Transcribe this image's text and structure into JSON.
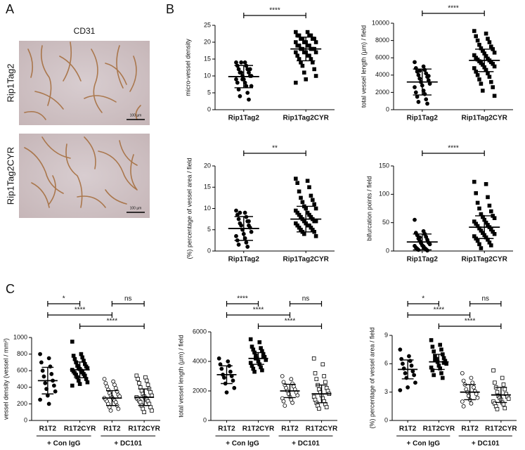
{
  "panels": {
    "a": "A",
    "b": "B",
    "c": "C"
  },
  "images": {
    "title": "CD31",
    "rows": [
      "Rip1Tag2",
      "Rip1Tag2CYR"
    ],
    "scale_bar": "100 µm"
  },
  "chart_data": [
    {
      "type": "dotplot",
      "ylabel": "micro-vessel density",
      "categories": [
        "Rip1Tag2",
        "Rip1Tag2CYR"
      ],
      "ylim": [
        0,
        25
      ],
      "yticks": [
        0,
        5,
        10,
        15,
        20,
        25
      ],
      "groups": [
        {
          "marker": "circle",
          "mean": 9.8,
          "sd": 3.3,
          "values": [
            14,
            14,
            13,
            13,
            12,
            12,
            11,
            11,
            11,
            10,
            10,
            10,
            9,
            9,
            8,
            8,
            7,
            6,
            5,
            4,
            3,
            14,
            12,
            9,
            7
          ]
        },
        {
          "marker": "square",
          "mean": 18,
          "sd": 3.5,
          "values": [
            23,
            23,
            22,
            22,
            22,
            22,
            21,
            21,
            21,
            21,
            20,
            20,
            20,
            20,
            19,
            19,
            19,
            19,
            18,
            18,
            18,
            18,
            18,
            17,
            17,
            17,
            17,
            16,
            16,
            16,
            15,
            15,
            14,
            14,
            13,
            12,
            11,
            10,
            9,
            8
          ]
        }
      ],
      "significance": [
        {
          "pair": [
            0,
            1
          ],
          "label": "****"
        }
      ]
    },
    {
      "type": "dotplot",
      "ylabel": "total vessel length (µm) / field",
      "categories": [
        "Rip1Tag2",
        "Rip1Tag2CYR"
      ],
      "ylim": [
        0,
        10000
      ],
      "yticks": [
        0,
        2000,
        4000,
        6000,
        8000,
        10000
      ],
      "groups": [
        {
          "marker": "circle",
          "mean": 3200,
          "sd": 1500,
          "values": [
            5500,
            5000,
            4800,
            4600,
            4400,
            4200,
            4000,
            3800,
            3600,
            3400,
            3200,
            3000,
            2800,
            2600,
            2200,
            2000,
            1800,
            1500,
            1200,
            900,
            700,
            4500,
            3900
          ]
        },
        {
          "marker": "square",
          "mean": 5700,
          "sd": 1300,
          "values": [
            9100,
            8800,
            8500,
            8200,
            8000,
            7800,
            7500,
            7300,
            7100,
            7000,
            6800,
            6600,
            6500,
            6300,
            6200,
            6000,
            5900,
            5800,
            5700,
            5600,
            5500,
            5400,
            5300,
            5200,
            5000,
            4900,
            4800,
            4600,
            4400,
            4200,
            4000,
            3800,
            3500,
            3200,
            3000,
            2600,
            2200,
            1600
          ]
        }
      ],
      "significance": [
        {
          "pair": [
            0,
            1
          ],
          "label": "****"
        }
      ]
    },
    {
      "type": "dotplot",
      "ylabel": "(%) percentage of vessel area / field",
      "categories": [
        "Rip1Tag2",
        "Rip1Tag2CYR"
      ],
      "ylim": [
        0,
        20
      ],
      "yticks": [
        0,
        5,
        10,
        15,
        20
      ],
      "groups": [
        {
          "marker": "circle",
          "mean": 5.3,
          "sd": 2.8,
          "values": [
            9.5,
            9,
            8.5,
            8,
            7.5,
            7,
            6.5,
            6,
            6,
            5.5,
            5,
            4.5,
            4,
            3.5,
            3,
            2.5,
            2,
            1.5,
            1,
            9,
            7
          ]
        },
        {
          "marker": "square",
          "mean": 7.5,
          "sd": 3,
          "values": [
            17,
            16.5,
            16,
            15,
            14,
            13,
            12.5,
            12,
            11.5,
            11,
            10.5,
            10,
            10,
            9.5,
            9,
            9,
            8.5,
            8.5,
            8,
            8,
            7.5,
            7.5,
            7,
            7,
            7,
            6.5,
            6.5,
            6,
            6,
            6,
            5.5,
            5.5,
            5,
            5,
            4.5,
            4.5,
            4,
            3.5
          ]
        }
      ],
      "significance": [
        {
          "pair": [
            0,
            1
          ],
          "label": "**"
        }
      ]
    },
    {
      "type": "dotplot",
      "ylabel": "bifurcation points / field",
      "categories": [
        "Rip1Tag2",
        "Rip1Tag2CYR"
      ],
      "ylim": [
        0,
        150
      ],
      "yticks": [
        0,
        50,
        100,
        150
      ],
      "groups": [
        {
          "marker": "circle",
          "mean": 16,
          "sd": 14,
          "values": [
            55,
            35,
            32,
            30,
            28,
            25,
            22,
            20,
            18,
            15,
            14,
            12,
            10,
            9,
            8,
            6,
            5,
            4,
            3,
            2,
            1,
            24
          ]
        },
        {
          "marker": "square",
          "mean": 42,
          "sd": 20,
          "values": [
            122,
            118,
            102,
            95,
            85,
            80,
            75,
            70,
            65,
            62,
            60,
            58,
            55,
            52,
            50,
            48,
            46,
            44,
            42,
            40,
            38,
            36,
            34,
            32,
            30,
            28,
            26,
            24,
            22,
            20,
            18,
            15,
            12,
            10,
            5
          ]
        }
      ],
      "significance": [
        {
          "pair": [
            0,
            1
          ],
          "label": "****"
        }
      ]
    },
    {
      "type": "dotplot",
      "ylabel": "vessel density (vessel / mm²)",
      "categories": [
        "R1T2",
        "R1T2CYR",
        "R1T2",
        "R1T2CYR"
      ],
      "ylim": [
        0,
        1000
      ],
      "yticks": [
        0,
        200,
        400,
        600,
        800,
        1000
      ],
      "groups": [
        {
          "marker": "circle",
          "mean": 480,
          "sd": 160,
          "values": [
            800,
            750,
            700,
            650,
            600,
            560,
            530,
            480,
            450,
            420,
            380,
            350,
            300,
            250,
            200
          ]
        },
        {
          "marker": "square",
          "mean": 610,
          "sd": 95,
          "values": [
            950,
            800,
            780,
            760,
            740,
            720,
            700,
            680,
            660,
            650,
            640,
            630,
            620,
            610,
            600,
            590,
            580,
            570,
            560,
            550,
            540,
            520,
            500,
            480,
            460,
            440,
            420
          ]
        },
        {
          "marker": "open-circle",
          "mean": 270,
          "sd": 90,
          "values": [
            500,
            470,
            450,
            430,
            410,
            390,
            370,
            350,
            330,
            310,
            300,
            290,
            280,
            270,
            260,
            250,
            240,
            230,
            220,
            200,
            180,
            160,
            140,
            120
          ]
        },
        {
          "marker": "open-square",
          "mean": 280,
          "sd": 100,
          "values": [
            540,
            520,
            500,
            480,
            450,
            430,
            400,
            380,
            360,
            340,
            320,
            300,
            290,
            280,
            270,
            260,
            250,
            240,
            230,
            220,
            200,
            180,
            160,
            140,
            120,
            100
          ]
        }
      ],
      "significance": [
        {
          "pair": [
            0,
            1
          ],
          "label": "*"
        },
        {
          "pair": [
            2,
            3
          ],
          "label": "ns"
        },
        {
          "pair": [
            0,
            2
          ],
          "label": "****"
        },
        {
          "pair": [
            1,
            3
          ],
          "label": "****"
        }
      ],
      "supergroups": [
        {
          "label": "+ Con IgG",
          "span": [
            0,
            1
          ]
        },
        {
          "label": "+ DC101",
          "span": [
            2,
            3
          ]
        }
      ]
    },
    {
      "type": "dotplot",
      "ylabel": "total vessel length (µm) / field",
      "categories": [
        "R1T2",
        "R1T2CYR",
        "R1T2",
        "R1T2CYR"
      ],
      "ylim": [
        0,
        6000
      ],
      "yticks": [
        0,
        2000,
        4000,
        6000
      ],
      "groups": [
        {
          "marker": "circle",
          "mean": 3100,
          "sd": 600,
          "values": [
            4200,
            4000,
            3800,
            3700,
            3500,
            3300,
            3100,
            3000,
            2900,
            2700,
            2500,
            2200,
            1900
          ]
        },
        {
          "marker": "square",
          "mean": 4200,
          "sd": 400,
          "values": [
            5500,
            5300,
            5000,
            4900,
            4800,
            4700,
            4600,
            4500,
            4400,
            4300,
            4200,
            4100,
            4000,
            3900,
            3800,
            3700,
            3600,
            3500,
            3400,
            3300,
            4300,
            4200
          ]
        },
        {
          "marker": "open-circle",
          "mean": 2000,
          "sd": 450,
          "values": [
            3000,
            2800,
            2600,
            2500,
            2400,
            2300,
            2200,
            2100,
            2000,
            1900,
            1800,
            1700,
            1600,
            1500,
            1400,
            1300,
            1200,
            1000
          ]
        },
        {
          "marker": "open-square",
          "mean": 1800,
          "sd": 600,
          "values": [
            4200,
            3800,
            3200,
            3000,
            2800,
            2600,
            2400,
            2200,
            2100,
            2000,
            1900,
            1800,
            1700,
            1600,
            1500,
            1400,
            1300,
            1200,
            1100,
            1000,
            900,
            800
          ]
        }
      ],
      "significance": [
        {
          "pair": [
            0,
            1
          ],
          "label": "****"
        },
        {
          "pair": [
            2,
            3
          ],
          "label": "ns"
        },
        {
          "pair": [
            0,
            2
          ],
          "label": "****"
        },
        {
          "pair": [
            1,
            3
          ],
          "label": "****"
        }
      ],
      "supergroups": [
        {
          "label": "+ Con IgG",
          "span": [
            0,
            1
          ]
        },
        {
          "label": "+ DC101",
          "span": [
            2,
            3
          ]
        }
      ]
    },
    {
      "type": "dotplot",
      "ylabel": "(%) percentage of vessel area / field",
      "categories": [
        "R1T2",
        "R1T2CYR",
        "R1T2",
        "R1T2CYR"
      ],
      "ylim": [
        0,
        9
      ],
      "yticks": [
        0,
        3,
        6,
        9
      ],
      "groups": [
        {
          "marker": "circle",
          "mean": 5.4,
          "sd": 1,
          "values": [
            7.5,
            6.8,
            6.5,
            6.3,
            6,
            5.8,
            5.5,
            5.2,
            5,
            4.8,
            4.5,
            4,
            3.5,
            3.2
          ]
        },
        {
          "marker": "square",
          "mean": 6.2,
          "sd": 0.8,
          "values": [
            8.5,
            8,
            7.8,
            7.5,
            7.3,
            7,
            6.8,
            6.6,
            6.5,
            6.3,
            6.2,
            6,
            5.8,
            5.6,
            5.5,
            5.3,
            5,
            4.8,
            4.5,
            6.4,
            6.1
          ]
        },
        {
          "marker": "open-circle",
          "mean": 3,
          "sd": 0.8,
          "values": [
            5,
            4.5,
            4.2,
            4,
            3.8,
            3.5,
            3.3,
            3.1,
            3,
            2.8,
            2.6,
            2.4,
            2.2,
            2,
            1.8,
            1.5
          ]
        },
        {
          "marker": "open-square",
          "mean": 2.7,
          "sd": 0.8,
          "values": [
            5.3,
            4.5,
            4,
            3.8,
            3.5,
            3.3,
            3,
            2.8,
            2.6,
            2.5,
            2.4,
            2.3,
            2.2,
            2,
            1.9,
            1.8,
            1.7,
            1.5,
            1.3,
            1.2
          ]
        }
      ],
      "significance": [
        {
          "pair": [
            0,
            1
          ],
          "label": "*"
        },
        {
          "pair": [
            2,
            3
          ],
          "label": "ns"
        },
        {
          "pair": [
            0,
            2
          ],
          "label": "****"
        },
        {
          "pair": [
            1,
            3
          ],
          "label": "****"
        }
      ],
      "supergroups": [
        {
          "label": "+ Con IgG",
          "span": [
            0,
            1
          ]
        },
        {
          "label": "+ DC101",
          "span": [
            2,
            3
          ]
        }
      ]
    }
  ]
}
